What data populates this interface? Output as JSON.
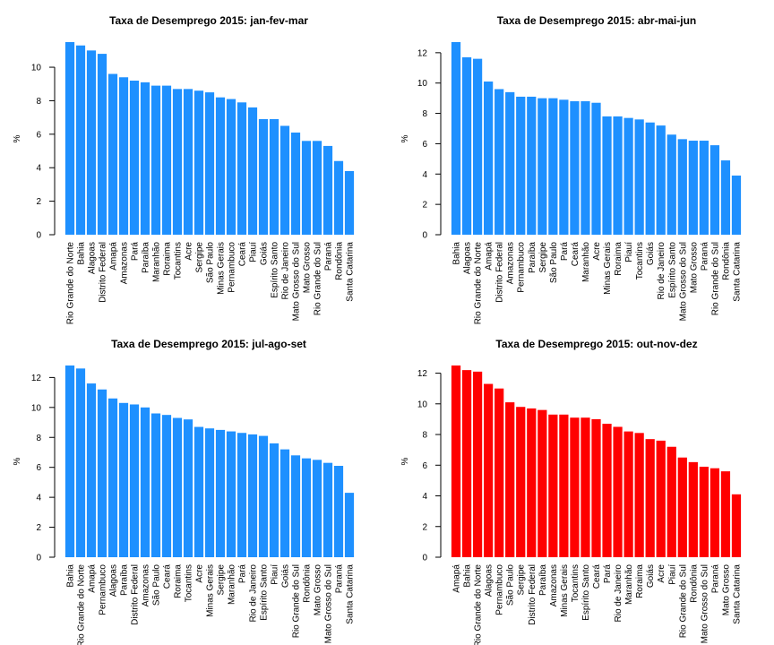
{
  "chart_data": [
    {
      "type": "bar",
      "title": "Taxa de Desemprego 2015: jan-fev-mar",
      "ylabel": "%",
      "ylim": [
        0,
        11.5
      ],
      "yticks": [
        0,
        2,
        4,
        6,
        8,
        10
      ],
      "color": "#1E90FF",
      "categories": [
        "Rio Grande do Norte",
        "Bahia",
        "Alagoas",
        "Distrito Federal",
        "Amapá",
        "Amazonas",
        "Pará",
        "Paraíba",
        "Maranhão",
        "Roraima",
        "Tocantins",
        "Acre",
        "Sergipe",
        "São Paulo",
        "Minas Gerais",
        "Pernambuco",
        "Ceará",
        "Piauí",
        "Goiás",
        "Espírito Santo",
        "Rio de Janeiro",
        "Mato Grosso do Sul",
        "Mato Grosso",
        "Rio Grande do Sul",
        "Paraná",
        "Rondônia",
        "Santa Catarina"
      ],
      "values": [
        11.5,
        11.3,
        11.0,
        10.8,
        9.6,
        9.4,
        9.2,
        9.1,
        8.9,
        8.9,
        8.7,
        8.7,
        8.6,
        8.5,
        8.2,
        8.1,
        7.9,
        7.6,
        6.9,
        6.9,
        6.5,
        6.1,
        5.6,
        5.6,
        5.3,
        4.4,
        3.8
      ]
    },
    {
      "type": "bar",
      "title": "Taxa de Desemprego 2015: abr-mai-jun",
      "ylabel": "%",
      "ylim": [
        0,
        12.7
      ],
      "yticks": [
        0,
        2,
        4,
        6,
        8,
        10,
        12
      ],
      "color": "#1E90FF",
      "categories": [
        "Bahia",
        "Alagoas",
        "Rio Grande do Norte",
        "Amapá",
        "Distrito Federal",
        "Amazonas",
        "Pernambuco",
        "Paraíba",
        "Sergipe",
        "São Paulo",
        "Pará",
        "Ceará",
        "Maranhão",
        "Acre",
        "Minas Gerais",
        "Roraima",
        "Piauí",
        "Tocantins",
        "Goiás",
        "Rio de Janeiro",
        "Espírito Santo",
        "Mato Grosso do Sul",
        "Mato Grosso",
        "Paraná",
        "Rio Grande do Sul",
        "Rondônia",
        "Santa Catarina"
      ],
      "values": [
        12.7,
        11.7,
        11.6,
        10.1,
        9.6,
        9.4,
        9.1,
        9.1,
        9.0,
        9.0,
        8.9,
        8.8,
        8.8,
        8.7,
        7.8,
        7.8,
        7.7,
        7.6,
        7.4,
        7.2,
        6.6,
        6.3,
        6.2,
        6.2,
        5.9,
        4.9,
        3.9
      ]
    },
    {
      "type": "bar",
      "title": "Taxa de Desemprego 2015: jul-ago-set",
      "ylabel": "%",
      "ylim": [
        0,
        12.8
      ],
      "yticks": [
        0,
        2,
        4,
        6,
        8,
        10,
        12
      ],
      "color": "#1E90FF",
      "categories": [
        "Bahia",
        "Rio Grande do Norte",
        "Amapá",
        "Pernambuco",
        "Alagoas",
        "Paraíba",
        "Distrito Federal",
        "Amazonas",
        "São Paulo",
        "Ceará",
        "Roraima",
        "Tocantins",
        "Acre",
        "Minas Gerais",
        "Sergipe",
        "Maranhão",
        "Pará",
        "Rio de Janeiro",
        "Espírito Santo",
        "Piauí",
        "Goiás",
        "Rio Grande do Sul",
        "Rondônia",
        "Mato Grosso",
        "Mato Grosso do Sul",
        "Paraná",
        "Santa Catarina"
      ],
      "values": [
        12.8,
        12.6,
        11.6,
        11.2,
        10.6,
        10.3,
        10.2,
        10.0,
        9.6,
        9.5,
        9.3,
        9.2,
        8.7,
        8.6,
        8.5,
        8.4,
        8.3,
        8.2,
        8.1,
        7.6,
        7.2,
        6.8,
        6.6,
        6.5,
        6.3,
        6.1,
        4.3
      ]
    },
    {
      "type": "bar",
      "title": "Taxa de Desemprego 2015: out-nov-dez",
      "ylabel": "%",
      "ylim": [
        0,
        12.5
      ],
      "yticks": [
        0,
        2,
        4,
        6,
        8,
        10,
        12
      ],
      "color": "#FF0000",
      "categories": [
        "Amapá",
        "Bahia",
        "Rio Grande do Norte",
        "Alagoas",
        "Pernambuco",
        "São Paulo",
        "Sergipe",
        "Distrito Federal",
        "Paraíba",
        "Amazonas",
        "Minas Gerais",
        "Tocantins",
        "Espírito Santo",
        "Ceará",
        "Pará",
        "Rio de Janeiro",
        "Maranhão",
        "Roraima",
        "Goiás",
        "Acre",
        "Piauí",
        "Rio Grande do Sul",
        "Rondônia",
        "Mato Grosso do Sul",
        "Paraná",
        "Mato Grosso",
        "Santa Catarina"
      ],
      "values": [
        12.5,
        12.2,
        12.1,
        11.3,
        11.0,
        10.1,
        9.8,
        9.7,
        9.6,
        9.3,
        9.3,
        9.1,
        9.1,
        9.0,
        8.7,
        8.5,
        8.2,
        8.1,
        7.7,
        7.6,
        7.2,
        6.5,
        6.2,
        5.9,
        5.8,
        5.6,
        4.1
      ]
    }
  ]
}
